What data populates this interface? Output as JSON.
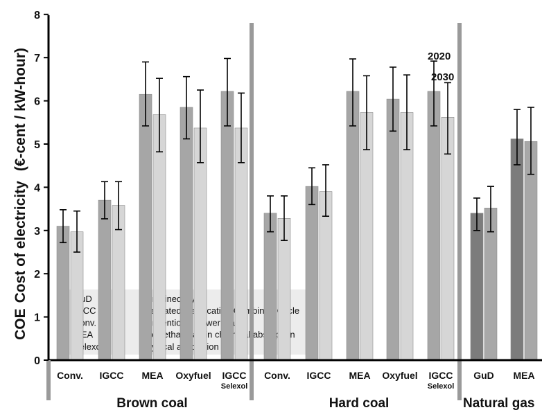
{
  "chart_data": {
    "type": "bar",
    "ylabel_prefix": "COE",
    "ylabel": "Cost of electricity",
    "yunit": "(€-cent / kW-hour)",
    "ylim": [
      0,
      8
    ],
    "yticks": [
      "0",
      "1",
      "2",
      "3",
      "4",
      "5",
      "6",
      "7",
      "8"
    ],
    "grid": false,
    "year_labels": [
      "2020",
      "2030"
    ],
    "groups": [
      {
        "name": "Brown coal",
        "categories": [
          {
            "label": "Conv.",
            "sublabel": "",
            "values": [
              3.1,
              2.97
            ],
            "err_low": [
              2.72,
              2.5
            ],
            "err_high": [
              3.48,
              3.45
            ]
          },
          {
            "label": "IGCC",
            "sublabel": "",
            "values": [
              3.7,
              3.58
            ],
            "err_low": [
              3.27,
              3.02
            ],
            "err_high": [
              4.13,
              4.13
            ]
          },
          {
            "label": "MEA",
            "sublabel": "",
            "values": [
              6.15,
              5.68
            ],
            "err_low": [
              5.42,
              4.82
            ],
            "err_high": [
              6.9,
              6.52
            ]
          },
          {
            "label": "Oxyfuel",
            "sublabel": "",
            "values": [
              5.85,
              5.37
            ],
            "err_low": [
              5.12,
              4.57
            ],
            "err_high": [
              6.56,
              6.25
            ]
          },
          {
            "label": "IGCC",
            "sublabel": "Selexol",
            "values": [
              6.22,
              5.37
            ],
            "err_low": [
              5.42,
              4.57
            ],
            "err_high": [
              6.98,
              6.18
            ]
          }
        ]
      },
      {
        "name": "Hard coal",
        "categories": [
          {
            "label": "Conv.",
            "sublabel": "",
            "values": [
              3.4,
              3.28
            ],
            "err_low": [
              2.97,
              2.77
            ],
            "err_high": [
              3.8,
              3.8
            ]
          },
          {
            "label": "IGCC",
            "sublabel": "",
            "values": [
              4.02,
              3.9
            ],
            "err_low": [
              3.6,
              3.33
            ],
            "err_high": [
              4.45,
              4.52
            ]
          },
          {
            "label": "MEA",
            "sublabel": "",
            "values": [
              6.22,
              5.73
            ],
            "err_low": [
              5.42,
              4.87
            ],
            "err_high": [
              6.97,
              6.58
            ]
          },
          {
            "label": "Oxyfuel",
            "sublabel": "",
            "values": [
              6.04,
              5.73
            ],
            "err_low": [
              5.3,
              4.87
            ],
            "err_high": [
              6.78,
              6.6
            ]
          },
          {
            "label": "IGCC",
            "sublabel": "Selexol",
            "values": [
              6.22,
              5.62
            ],
            "err_low": [
              5.42,
              4.77
            ],
            "err_high": [
              6.92,
              6.42
            ]
          }
        ]
      },
      {
        "name": "Natural gas",
        "categories": [
          {
            "label": "GuD",
            "sublabel": "",
            "values": [
              3.4,
              3.52
            ],
            "err_low": [
              3.0,
              2.97
            ],
            "err_high": [
              3.75,
              4.02
            ]
          },
          {
            "label": "MEA",
            "sublabel": "",
            "values": [
              5.12,
              5.06
            ],
            "err_low": [
              4.52,
              4.3
            ],
            "err_high": [
              5.8,
              5.85
            ]
          }
        ]
      }
    ],
    "legend": [
      {
        "abbr": "GuD",
        "desc": "Combined Cycle"
      },
      {
        "abbr": "IGCC",
        "desc": "Integrated Gasification Combined Cycle"
      },
      {
        "abbr": "Conv.",
        "desc": "Conventional power plant"
      },
      {
        "abbr": "MEA",
        "desc": "Monoethanolamin chemical absorption"
      },
      {
        "abbr": "Selexol",
        "desc": "Physical absorption"
      }
    ],
    "colors": {
      "coal_2020": "#a6a6a6",
      "coal_2030": "#d6d6d6",
      "gas_2020": "#7c7c7c",
      "gas_2030": "#a8a8a8",
      "separator": "#9a9a9a",
      "legend_bg": "#ececec"
    }
  }
}
